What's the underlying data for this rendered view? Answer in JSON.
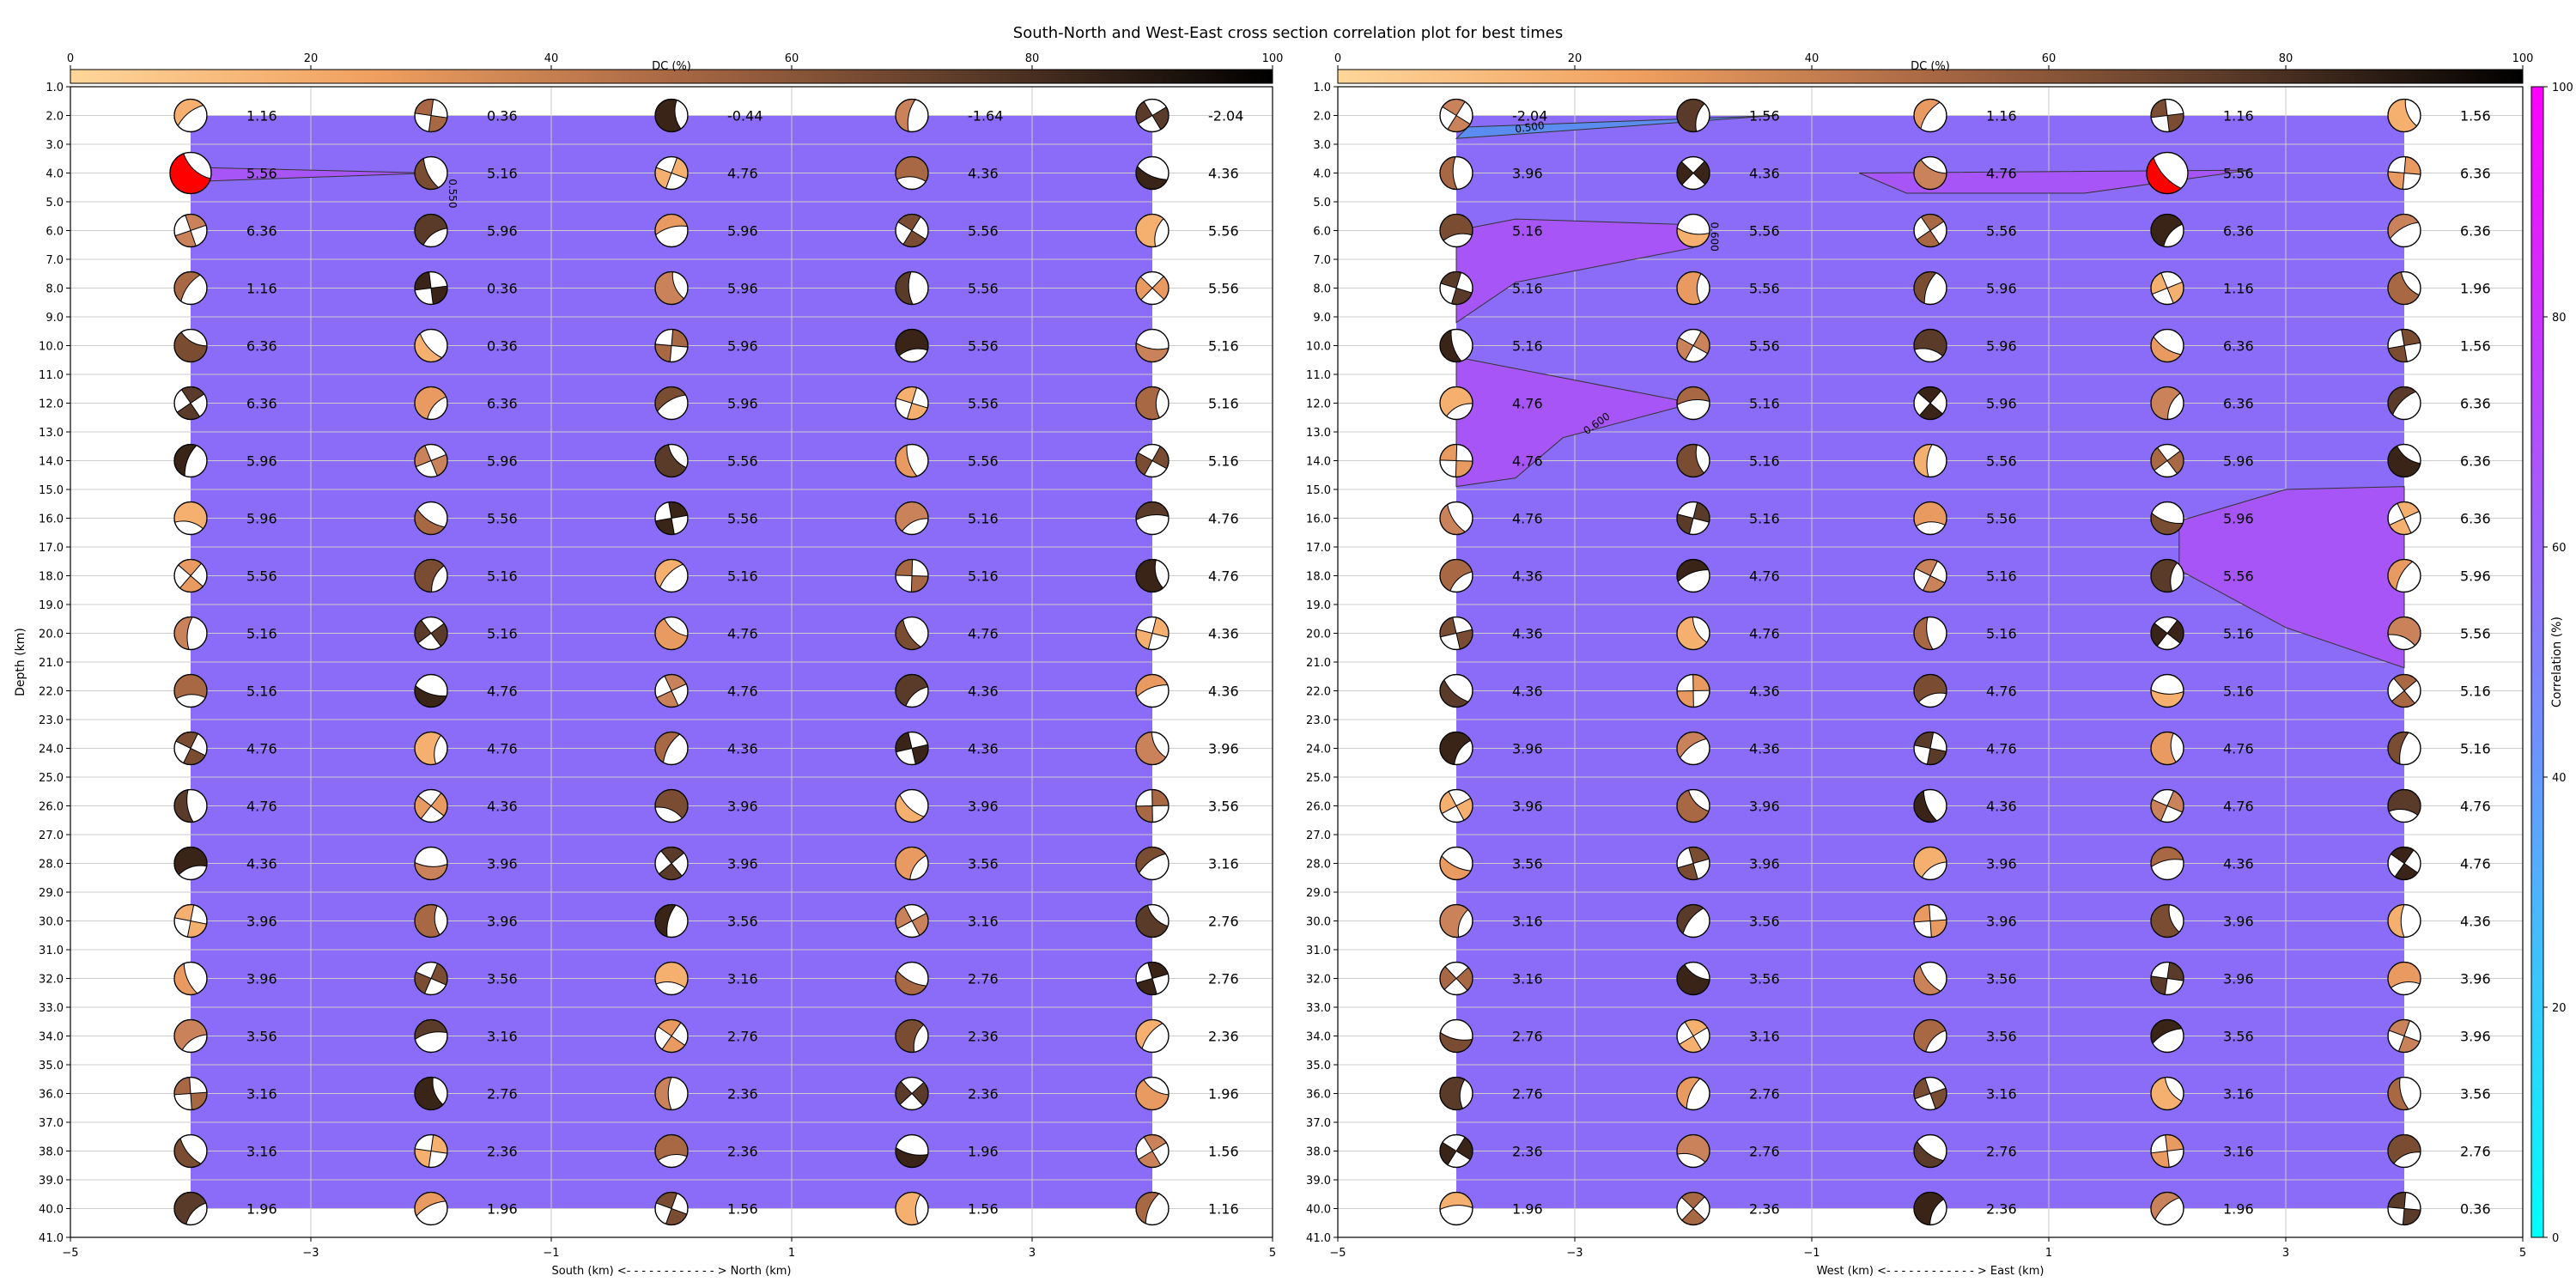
{
  "title": "South-North and West-East cross section correlation plot for best times",
  "dc_colorbar": {
    "label": "DC (%)",
    "ticks": [
      "0",
      "20",
      "40",
      "60",
      "80",
      "100"
    ]
  },
  "correlation_colorbar": {
    "label": "Correlation (%)",
    "ticks": [
      "0",
      "20",
      "40",
      "60",
      "80",
      "100"
    ]
  },
  "chart_data": [
    {
      "type": "heatmap",
      "name": "south-north",
      "xlabel": "South (km) <- - - - - - - - - - - - > North (km)",
      "ylabel": "Depth (km)",
      "xlim": [
        -5,
        5
      ],
      "ylim": [
        41,
        1
      ],
      "xticks": [
        -5,
        -3,
        -1,
        1,
        3,
        5
      ],
      "x": [
        -4,
        -2,
        0,
        2,
        4
      ],
      "depths": [
        2,
        4,
        6,
        8,
        10,
        12,
        14,
        16,
        18,
        20,
        22,
        24,
        26,
        28,
        30,
        32,
        34,
        36,
        38,
        40
      ],
      "times": [
        [
          "1.16",
          "0.36",
          "-0.44",
          "-1.64",
          "-2.04"
        ],
        [
          "5.56",
          "5.16",
          "4.76",
          "4.36",
          "4.36"
        ],
        [
          "6.36",
          "5.96",
          "5.96",
          "5.56",
          "5.56"
        ],
        [
          "1.16",
          "0.36",
          "5.96",
          "5.56",
          "5.56"
        ],
        [
          "6.36",
          "0.36",
          "5.96",
          "5.56",
          "5.16"
        ],
        [
          "6.36",
          "6.36",
          "5.96",
          "5.56",
          "5.16"
        ],
        [
          "5.96",
          "5.96",
          "5.56",
          "5.56",
          "5.16"
        ],
        [
          "5.96",
          "5.56",
          "5.56",
          "5.16",
          "4.76"
        ],
        [
          "5.56",
          "5.16",
          "5.16",
          "5.16",
          "4.76"
        ],
        [
          "5.16",
          "5.16",
          "4.76",
          "4.76",
          "4.36"
        ],
        [
          "5.16",
          "4.76",
          "4.76",
          "4.36",
          "4.36"
        ],
        [
          "4.76",
          "4.76",
          "4.36",
          "4.36",
          "3.96"
        ],
        [
          "4.76",
          "4.36",
          "3.96",
          "3.96",
          "3.56"
        ],
        [
          "4.36",
          "3.96",
          "3.96",
          "3.56",
          "3.16"
        ],
        [
          "3.96",
          "3.96",
          "3.56",
          "3.16",
          "2.76"
        ],
        [
          "3.96",
          "3.56",
          "3.16",
          "2.76",
          "2.76"
        ],
        [
          "3.56",
          "3.16",
          "2.76",
          "2.36",
          "2.36"
        ],
        [
          "3.16",
          "2.76",
          "2.36",
          "2.36",
          "1.96"
        ],
        [
          "3.16",
          "2.36",
          "2.36",
          "1.96",
          "1.56"
        ],
        [
          "1.96",
          "1.96",
          "1.56",
          "1.56",
          "1.16"
        ]
      ],
      "contour_labels": [
        "0.550"
      ],
      "best_solution": {
        "x": -4,
        "depth": 4
      }
    },
    {
      "type": "heatmap",
      "name": "west-east",
      "xlabel": "West (km) <- - - - - - - - - - - - > East (km)",
      "ylabel": "",
      "xlim": [
        -5,
        5
      ],
      "ylim": [
        41,
        1
      ],
      "xticks": [
        -5,
        -3,
        -1,
        1,
        3,
        5
      ],
      "x": [
        -4,
        -2,
        0,
        2,
        4
      ],
      "depths": [
        2,
        4,
        6,
        8,
        10,
        12,
        14,
        16,
        18,
        20,
        22,
        24,
        26,
        28,
        30,
        32,
        34,
        36,
        38,
        40
      ],
      "times": [
        [
          "-2.04",
          "1.56",
          "1.16",
          "1.16",
          "1.56"
        ],
        [
          "3.96",
          "4.36",
          "4.76",
          "5.56",
          "6.36"
        ],
        [
          "5.16",
          "5.56",
          "5.56",
          "6.36",
          "6.36"
        ],
        [
          "5.16",
          "5.56",
          "5.96",
          "1.16",
          "1.96"
        ],
        [
          "5.16",
          "5.56",
          "5.96",
          "6.36",
          "1.56"
        ],
        [
          "4.76",
          "5.16",
          "5.96",
          "6.36",
          "6.36"
        ],
        [
          "4.76",
          "5.16",
          "5.56",
          "5.96",
          "6.36"
        ],
        [
          "4.76",
          "5.16",
          "5.56",
          "5.96",
          "6.36"
        ],
        [
          "4.36",
          "4.76",
          "5.16",
          "5.56",
          "5.96"
        ],
        [
          "4.36",
          "4.76",
          "5.16",
          "5.16",
          "5.56"
        ],
        [
          "4.36",
          "4.36",
          "4.76",
          "5.16",
          "5.16"
        ],
        [
          "3.96",
          "4.36",
          "4.76",
          "4.76",
          "5.16"
        ],
        [
          "3.96",
          "3.96",
          "4.36",
          "4.76",
          "4.76"
        ],
        [
          "3.56",
          "3.96",
          "3.96",
          "4.36",
          "4.76"
        ],
        [
          "3.16",
          "3.56",
          "3.96",
          "3.96",
          "4.36"
        ],
        [
          "3.16",
          "3.56",
          "3.56",
          "3.96",
          "3.96"
        ],
        [
          "2.76",
          "3.16",
          "3.56",
          "3.56",
          "3.96"
        ],
        [
          "2.76",
          "2.76",
          "3.16",
          "3.16",
          "3.56"
        ],
        [
          "2.36",
          "2.76",
          "2.76",
          "3.16",
          "2.76"
        ],
        [
          "1.96",
          "2.36",
          "2.36",
          "1.96",
          "0.36"
        ]
      ],
      "contour_labels": [
        "0.500",
        "0.600",
        "0.600"
      ],
      "best_solution": {
        "x": 2,
        "depth": 4
      }
    }
  ],
  "colors": {
    "correlation_fill": "#8a6cf8",
    "contour_high": "#a855f7",
    "contour_low": "#5b8cf0",
    "best_solution": "#ff0000",
    "grid": "#cccccc"
  }
}
